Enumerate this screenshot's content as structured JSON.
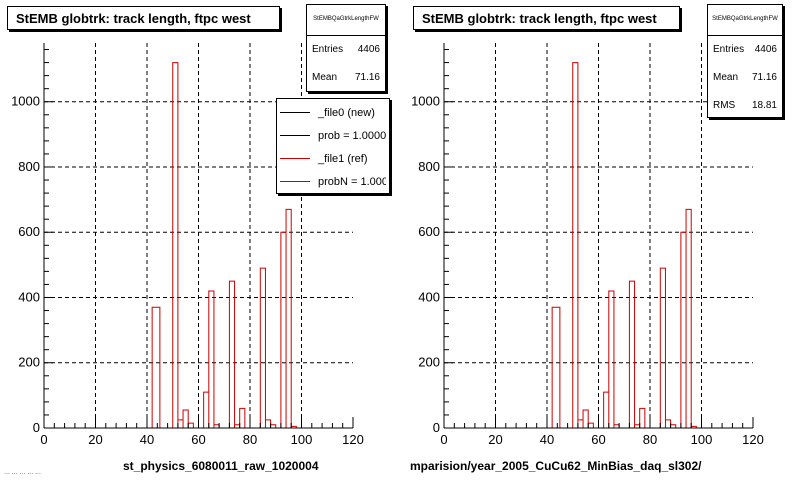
{
  "panels": [
    {
      "title": "StEMB globtrk: track length, ftpc west",
      "stats": {
        "name": "StEMBQaGtrkLengthFW",
        "rows": [
          {
            "label": "Entries",
            "value": "4406"
          },
          {
            "label": "Mean",
            "value": "71.16"
          }
        ]
      },
      "legend": [
        {
          "text": "_file0 (new)",
          "color": "#000000"
        },
        {
          "text": "prob = 1.000000",
          "color": "#000000"
        },
        {
          "text": "_file1 (ref)",
          "color": "#cc0000"
        },
        {
          "text": "probN = 1.000000",
          "color": "#cc0000"
        }
      ],
      "xcaption": "st_physics_6080011_raw_1020004"
    },
    {
      "title": "StEMB globtrk: track length, ftpc west",
      "stats": {
        "name": "StEMBQaGtrkLengthFW",
        "rows": [
          {
            "label": "Entries",
            "value": "4406"
          },
          {
            "label": "Mean",
            "value": "71.16"
          },
          {
            "label": "RMS",
            "value": "18.81"
          }
        ]
      },
      "xcaption": "mparision/year_2005_CuCu62_MinBias_daq_sl302/"
    }
  ],
  "footnote": "... ... ... ... ...",
  "chart_data": {
    "type": "bar",
    "histogram": true,
    "series_color": "#cc0000",
    "xlim": [
      0,
      120
    ],
    "ylim": [
      0,
      1180
    ],
    "xticks": [
      0,
      20,
      40,
      60,
      80,
      100,
      120
    ],
    "yticks": [
      0,
      200,
      400,
      600,
      800,
      1000
    ],
    "grid": true,
    "bins": [
      {
        "x0": 42,
        "x1": 45,
        "y": 370
      },
      {
        "x0": 50,
        "x1": 52,
        "y": 1120
      },
      {
        "x0": 52,
        "x1": 54,
        "y": 25
      },
      {
        "x0": 54,
        "x1": 56,
        "y": 55
      },
      {
        "x0": 56,
        "x1": 58,
        "y": 15
      },
      {
        "x0": 62,
        "x1": 64,
        "y": 110
      },
      {
        "x0": 64,
        "x1": 66,
        "y": 420
      },
      {
        "x0": 66,
        "x1": 68,
        "y": 10
      },
      {
        "x0": 72,
        "x1": 74,
        "y": 450
      },
      {
        "x0": 74,
        "x1": 76,
        "y": 10
      },
      {
        "x0": 76,
        "x1": 78,
        "y": 60
      },
      {
        "x0": 84,
        "x1": 86,
        "y": 490
      },
      {
        "x0": 86,
        "x1": 88,
        "y": 25
      },
      {
        "x0": 88,
        "x1": 90,
        "y": 10
      },
      {
        "x0": 92,
        "x1": 94,
        "y": 600
      },
      {
        "x0": 94,
        "x1": 96,
        "y": 670
      },
      {
        "x0": 96,
        "x1": 98,
        "y": 5
      }
    ]
  }
}
